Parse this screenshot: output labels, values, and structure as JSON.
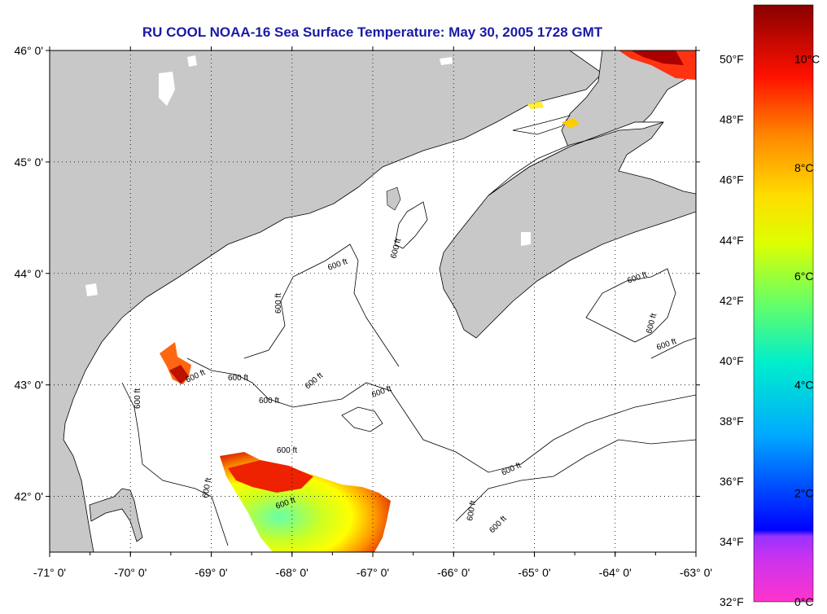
{
  "title": "RU COOL  NOAA-16  Sea Surface Temperature:  May 30, 2005 1728 GMT",
  "map": {
    "lon_range": [
      -71,
      -63
    ],
    "lat_range": [
      41.5,
      46
    ],
    "lat_ticks": [
      {
        "value": 46,
        "label": "46° 0'"
      },
      {
        "value": 45,
        "label": "45° 0'"
      },
      {
        "value": 44,
        "label": "44° 0'"
      },
      {
        "value": 43,
        "label": "43° 0'"
      },
      {
        "value": 42,
        "label": "42° 0'"
      }
    ],
    "lon_ticks": [
      {
        "value": -71,
        "label": "-71° 0'"
      },
      {
        "value": -70,
        "label": "-70° 0'"
      },
      {
        "value": -69,
        "label": "-69° 0'"
      },
      {
        "value": -68,
        "label": "-68° 0'"
      },
      {
        "value": -67,
        "label": "-67° 0'"
      },
      {
        "value": -66,
        "label": "-66° 0'"
      },
      {
        "value": -65,
        "label": "-65° 0'"
      },
      {
        "value": -64,
        "label": "-64° 0'"
      },
      {
        "value": -63,
        "label": "-63° 0'"
      }
    ],
    "grid": true,
    "land_color": "#c8c8c8",
    "contour_label": "600 ft"
  },
  "colorbar": {
    "min_c": 0,
    "max_c": 11,
    "f_labels": [
      "50°F",
      "48°F",
      "46°F",
      "44°F",
      "42°F",
      "40°F",
      "38°F",
      "36°F",
      "34°F",
      "32°F"
    ],
    "c_labels": [
      "10°C",
      "8°C",
      "6°C",
      "4°C",
      "2°C",
      "0°C"
    ],
    "stops": [
      "#ff33cc",
      "#9933ff",
      "#0000ff",
      "#00ccff",
      "#00ff99",
      "#aaff00",
      "#ffff00",
      "#ff9900",
      "#ff0000",
      "#990000"
    ]
  }
}
